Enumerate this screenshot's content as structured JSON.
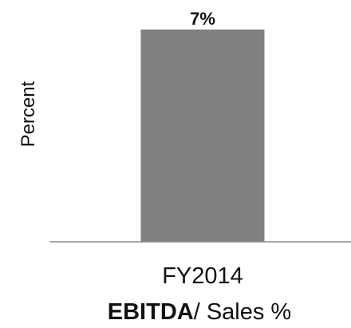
{
  "chart_data": {
    "type": "bar",
    "categories": [
      "FY2014"
    ],
    "values": [
      7
    ],
    "data_labels": [
      "7%"
    ],
    "ylabel": "Percent",
    "xlabel_bold": "EBITDA",
    "xlabel_rest": "/ Sales %",
    "ylim": [
      0,
      7
    ],
    "grid": false,
    "legend": "none",
    "colors": {
      "bar": "#808080",
      "axis": "#8c8c8c",
      "text": "#111111"
    }
  }
}
